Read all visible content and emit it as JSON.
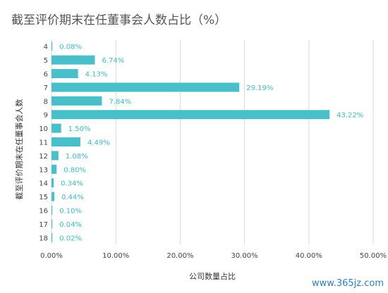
{
  "chart_data": {
    "type": "bar",
    "orientation": "horizontal",
    "title": "截至评价期末在任董事会人数占比（%）",
    "xlabel": "公司数量占比",
    "ylabel": "截至评价期末在任董事会人数",
    "categories": [
      "4",
      "5",
      "6",
      "7",
      "8",
      "9",
      "10",
      "11",
      "12",
      "13",
      "14",
      "15",
      "16",
      "17",
      "18"
    ],
    "values": [
      0.08,
      6.74,
      4.13,
      29.19,
      7.84,
      43.22,
      1.5,
      4.49,
      1.08,
      0.8,
      0.34,
      0.44,
      0.1,
      0.04,
      0.02
    ],
    "value_labels": [
      "0.08%",
      "6.74%",
      "4.13%",
      "29.19%",
      "7.84%",
      "43.22%",
      "1.50%",
      "4.49%",
      "1.08%",
      "0.80%",
      "0.34%",
      "0.44%",
      "0.10%",
      "0.04%",
      "0.02%"
    ],
    "x_ticks": [
      0,
      10,
      20,
      30,
      40,
      50
    ],
    "x_tick_labels": [
      "0.00%",
      "10.00%",
      "20.00%",
      "30.00%",
      "40.00%",
      "50.00%"
    ],
    "xlim": [
      0,
      50
    ],
    "grid": "vertical",
    "bar_color": "#49bfc9",
    "label_color": "#3bbcc8"
  },
  "watermark": "www.365jz.com"
}
